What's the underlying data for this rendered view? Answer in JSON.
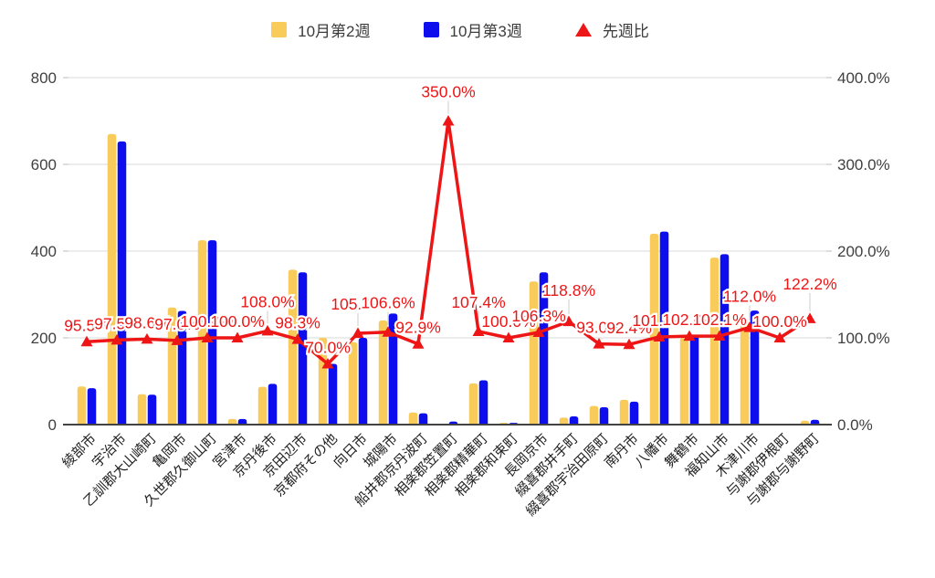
{
  "chart": {
    "legend": {
      "items": [
        {
          "label": "10月第2週",
          "color": "#f8cb5a",
          "shape": "square"
        },
        {
          "label": "10月第3週",
          "color": "#0d0dee",
          "shape": "square"
        },
        {
          "label": "先週比",
          "color": "#ed1515",
          "shape": "triangle"
        }
      ]
    }
  },
  "chart_data": {
    "type": "combo-bar-line",
    "title": "",
    "legend_position": "top",
    "grid": true,
    "categories": [
      "綾部市",
      "宇治市",
      "乙訓郡大山崎町",
      "亀岡市",
      "久世郡久御山町",
      "宮津市",
      "京丹後市",
      "京田辺市",
      "京都府その他",
      "向日市",
      "城陽市",
      "船井郡京丹波町",
      "相楽郡笠置町",
      "相楽郡精華町",
      "相楽郡和束町",
      "長岡京市",
      "綴喜郡井手町",
      "綴喜郡宇治田原町",
      "南丹市",
      "八幡市",
      "舞鶴市",
      "福知山市",
      "木津川市",
      "与謝郡伊根町",
      "与謝郡与謝野町"
    ],
    "series": [
      {
        "name": "10月第2週",
        "type": "bar",
        "axis": "left",
        "color": "#f8cb5a",
        "values": [
          88,
          670,
          70,
          270,
          425,
          13,
          87,
          357,
          200,
          190,
          240,
          28,
          2,
          95,
          4,
          330,
          16,
          43,
          57,
          440,
          200,
          385,
          235,
          2,
          9
        ]
      },
      {
        "name": "10月第3週",
        "type": "bar",
        "axis": "left",
        "color": "#0d0dee",
        "values": [
          84,
          653,
          69,
          262,
          425,
          13,
          94,
          351,
          140,
          200,
          256,
          26,
          7,
          102,
          4,
          351,
          19,
          40,
          53,
          445,
          204,
          393,
          263,
          2,
          11
        ]
      },
      {
        "name": "先週比",
        "type": "line",
        "axis": "right",
        "color": "#ed1515",
        "values": [
          95.5,
          97.5,
          98.6,
          97.0,
          100.0,
          100.0,
          108.0,
          98.3,
          70.0,
          105.3,
          106.6,
          92.9,
          350.0,
          107.4,
          100.0,
          106.3,
          118.8,
          93.0,
          92.4,
          101.1,
          102.0,
          102.1,
          112.0,
          100.0,
          122.2
        ],
        "point_labels": [
          "95.5%",
          "97.5%",
          "98.6%",
          "97.0%",
          "100.0%",
          "100.0%",
          "108.0%",
          "98.3%",
          "70.0%",
          "105.3%",
          "106.6%",
          "92.9%",
          "350.0%",
          "107.4%",
          "100.0%",
          "106.3%",
          "118.8%",
          "93.0%",
          "92.4%",
          "101.1%",
          "102.0%",
          "102.1%",
          "112.0%",
          "100.0%",
          "122.2%"
        ]
      }
    ],
    "left_axis": {
      "range": [
        0,
        800
      ],
      "ticks": [
        "0",
        "200",
        "400",
        "600",
        "800"
      ]
    },
    "right_axis": {
      "range": [
        0,
        400
      ],
      "ticks": [
        "0.0%",
        "100.0%",
        "200.0%",
        "300.0%",
        "400.0%"
      ]
    },
    "annotations_color": "#ed1515"
  }
}
